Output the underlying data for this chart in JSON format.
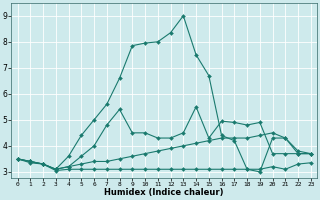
{
  "xlabel": "Humidex (Indice chaleur)",
  "background_color": "#ceeaec",
  "line_color": "#1a7a6e",
  "grid_color": "#ffffff",
  "xlim": [
    -0.5,
    23.5
  ],
  "ylim": [
    2.75,
    9.5
  ],
  "xticks": [
    0,
    1,
    2,
    3,
    4,
    5,
    6,
    7,
    8,
    9,
    10,
    11,
    12,
    13,
    14,
    15,
    16,
    17,
    18,
    19,
    20,
    21,
    22,
    23
  ],
  "yticks": [
    3,
    4,
    5,
    6,
    7,
    8,
    9
  ],
  "lines": [
    {
      "x": [
        0,
        1,
        2,
        3,
        4,
        5,
        6,
        7,
        8,
        9,
        10,
        11,
        12,
        13,
        14,
        15,
        16,
        17,
        18,
        19,
        20,
        21,
        22,
        23
      ],
      "y": [
        3.5,
        3.4,
        3.3,
        3.1,
        3.6,
        4.4,
        5.0,
        5.6,
        6.6,
        7.85,
        7.95,
        8.0,
        8.35,
        9.0,
        7.5,
        6.7,
        4.4,
        4.2,
        3.1,
        3.0,
        4.3,
        4.3,
        3.7,
        3.7
      ]
    },
    {
      "x": [
        0,
        1,
        2,
        3,
        4,
        5,
        6,
        7,
        8,
        9,
        10,
        11,
        12,
        13,
        14,
        15,
        16,
        17,
        18,
        19,
        20,
        21,
        22,
        23
      ],
      "y": [
        3.5,
        3.4,
        3.3,
        3.1,
        3.2,
        3.6,
        4.0,
        4.8,
        5.4,
        4.5,
        4.5,
        4.3,
        4.3,
        4.5,
        5.5,
        4.3,
        4.95,
        4.9,
        4.8,
        4.9,
        3.7,
        3.7,
        3.7,
        3.7
      ]
    },
    {
      "x": [
        0,
        1,
        2,
        3,
        4,
        5,
        6,
        7,
        8,
        9,
        10,
        11,
        12,
        13,
        14,
        15,
        16,
        17,
        18,
        19,
        20,
        21,
        22,
        23
      ],
      "y": [
        3.5,
        3.4,
        3.3,
        3.1,
        3.2,
        3.3,
        3.4,
        3.4,
        3.5,
        3.6,
        3.7,
        3.8,
        3.9,
        4.0,
        4.1,
        4.2,
        4.3,
        4.3,
        4.3,
        4.4,
        4.5,
        4.3,
        3.8,
        3.7
      ]
    },
    {
      "x": [
        0,
        1,
        2,
        3,
        4,
        5,
        6,
        7,
        8,
        9,
        10,
        11,
        12,
        13,
        14,
        15,
        16,
        17,
        18,
        19,
        20,
        21,
        22,
        23
      ],
      "y": [
        3.5,
        3.35,
        3.3,
        3.05,
        3.1,
        3.1,
        3.1,
        3.1,
        3.1,
        3.1,
        3.1,
        3.1,
        3.1,
        3.1,
        3.1,
        3.1,
        3.1,
        3.1,
        3.1,
        3.1,
        3.2,
        3.1,
        3.3,
        3.35
      ]
    }
  ]
}
